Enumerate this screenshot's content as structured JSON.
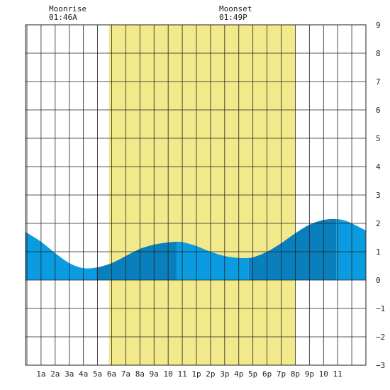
{
  "chart_data": {
    "type": "area",
    "moon": {
      "moonrise_label": "Moonrise",
      "moonrise_time": "01:46A",
      "moonset_label": "Moonset",
      "moonset_time": "01:49P"
    },
    "x_tick_labels": [
      "1a",
      "2a",
      "3a",
      "4a",
      "5a",
      "6a",
      "7a",
      "8a",
      "9a",
      "10",
      "11",
      "1p",
      "2p",
      "3p",
      "4p",
      "5p",
      "6p",
      "7p",
      "8p",
      "9p",
      "10",
      "11"
    ],
    "xlim": [
      -0.1,
      24.0
    ],
    "ylim": [
      -3,
      9
    ],
    "y_ticks": [
      -3,
      -2,
      -1,
      0,
      1,
      2,
      3,
      4,
      5,
      6,
      7,
      8,
      9
    ],
    "y_axis_side": "right",
    "grid": true,
    "daylight_hours": [
      5.8,
      19.0
    ],
    "series": [
      {
        "x": [
          -0.1,
          1.0,
          2.0,
          3.0,
          4.0,
          5.0,
          6.0,
          7.0,
          8.0,
          9.0,
          10.0,
          10.6,
          11.0,
          12.0,
          13.0,
          14.0,
          15.0,
          15.7,
          16.0,
          17.0,
          18.0,
          19.0,
          20.0,
          21.0,
          21.9,
          22.5,
          23.0,
          24.0
        ],
        "y": [
          1.7,
          1.35,
          0.95,
          0.6,
          0.42,
          0.45,
          0.6,
          0.85,
          1.1,
          1.25,
          1.33,
          1.35,
          1.34,
          1.2,
          1.0,
          0.85,
          0.78,
          0.78,
          0.8,
          1.0,
          1.3,
          1.65,
          1.95,
          2.12,
          2.15,
          2.1,
          2.0,
          1.75
        ]
      }
    ],
    "tide_bands": [
      {
        "from": -0.1,
        "to": 4.9,
        "shade": "light"
      },
      {
        "from": 4.9,
        "to": 10.6,
        "shade": "dark"
      },
      {
        "from": 10.6,
        "to": 15.7,
        "shade": "light"
      },
      {
        "from": 15.7,
        "to": 21.9,
        "shade": "dark"
      },
      {
        "from": 21.9,
        "to": 24.0,
        "shade": "light"
      }
    ],
    "colors": {
      "daylight": "#f2e98a",
      "tide_light": "#0a9be0",
      "tide_dark": "#0a7fbe",
      "grid": "#222222",
      "background": "#ffffff"
    }
  }
}
